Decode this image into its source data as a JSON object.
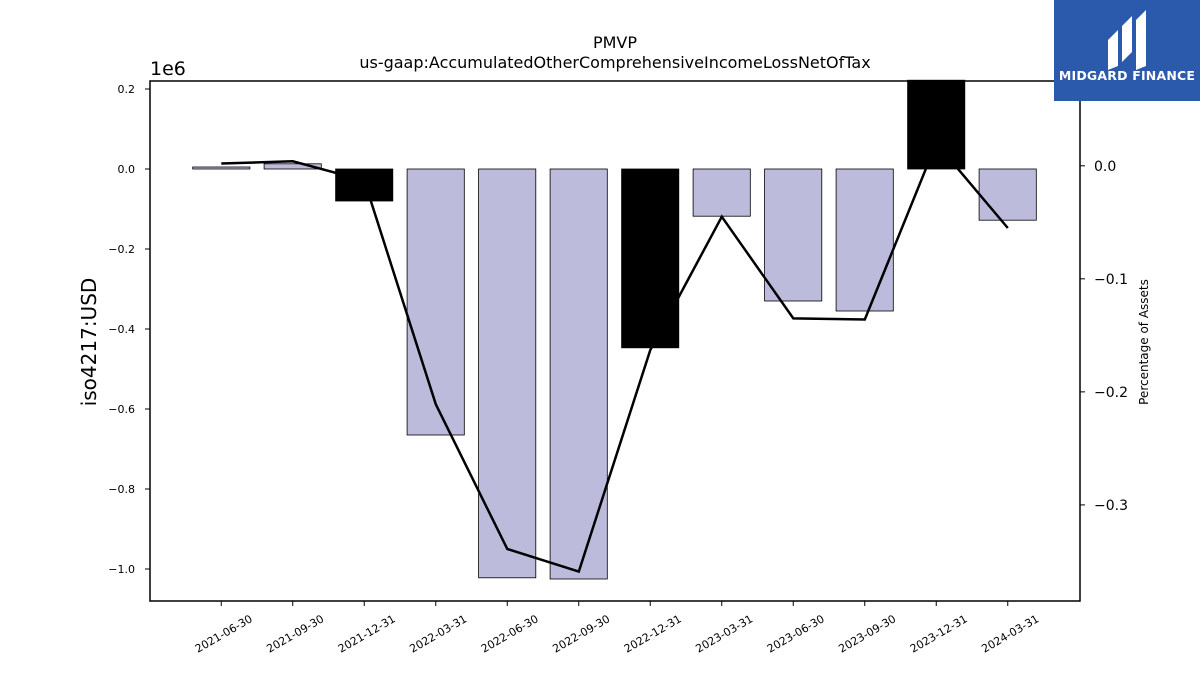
{
  "chart_data": {
    "type": "bar",
    "title": "PMVP",
    "subtitle": "us-gaap:AccumulatedOtherComprehensiveIncomeLossNetOfTax",
    "ylabel": "iso4217:USD",
    "y2label": "Percentage of Assets",
    "y_offset_label": "1e6",
    "categories": [
      "2021-06-30",
      "2021-09-30",
      "2021-12-31",
      "2022-03-31",
      "2022-06-30",
      "2022-09-30",
      "2022-12-31",
      "2023-03-31",
      "2023-06-30",
      "2023-09-30",
      "2023-12-31",
      "2024-03-31"
    ],
    "values": [
      5000,
      13000,
      -80000,
      -665000,
      -1022000,
      -1025000,
      -447000,
      -118000,
      -330000,
      -355000,
      222000,
      -128000
    ],
    "highlighted": [
      false,
      false,
      true,
      false,
      false,
      false,
      true,
      false,
      false,
      false,
      true,
      false
    ],
    "series": [
      {
        "name": "Percentage of Assets",
        "axis": "right",
        "type": "line",
        "values": [
          0.002,
          0.004,
          -0.013,
          -0.211,
          -0.339,
          -0.359,
          -0.163,
          -0.045,
          -0.135,
          -0.136,
          0.02,
          -0.055
        ]
      }
    ],
    "ylim": [
      -1080000.0,
      220000.0
    ],
    "y2lim": [
      -0.385,
      0.075
    ],
    "yticks": [
      0.2,
      0.0,
      -0.2,
      -0.4,
      -0.6,
      -0.8,
      -1.0
    ],
    "yticklabels": [
      "0.2",
      "0.0",
      "−0.2",
      "−0.4",
      "−0.6",
      "−0.8",
      "−1.0"
    ],
    "y2ticks": [
      0.0,
      -0.1,
      -0.2,
      -0.3
    ],
    "y2ticklabels": [
      "0.0",
      "−0.1",
      "−0.2",
      "−0.3"
    ],
    "grid": false,
    "colors": {
      "bar": "#bcbbdb",
      "bar_highlight": "#000000",
      "line": "#000000"
    }
  },
  "logo": {
    "text": "MIDGARD FINANCE",
    "color": "#2b5aad"
  }
}
